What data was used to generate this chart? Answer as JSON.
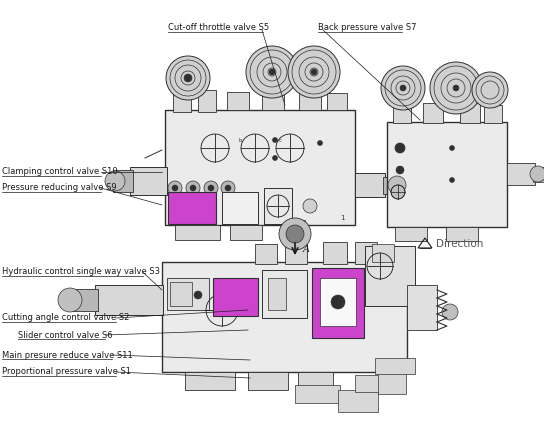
{
  "bg_color": "#ffffff",
  "fig_width": 5.44,
  "fig_height": 4.22,
  "dpi": 100,
  "labels": {
    "cut_off_throttle": "Cut-off throttle valve S5",
    "back_pressure": "Back pressure valve S7",
    "clamping_control": "Clamping control valve S10",
    "pressure_reducing": "Pressure reducing valve S9",
    "hydraulic_control": "Hydraulic control single way valve S3",
    "cutting_angle": "Cutting angle control valve S2",
    "slider_control": "Slider control valve S6",
    "main_pressure": "Main presure reduce valve S11",
    "proportional": "Proportional pressure valve S1",
    "direction": "Direction"
  },
  "line_color": "#1a1a1a",
  "magenta_color": "#cc44cc",
  "light_gray": "#d8d8d8",
  "mid_gray": "#b8b8b8",
  "comp_gray": "#e8e8e8",
  "dark_gray": "#505050",
  "border_color": "#303030"
}
